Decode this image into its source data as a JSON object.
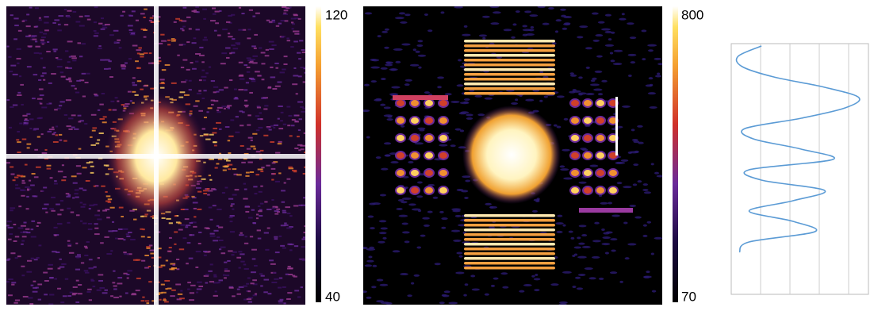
{
  "colorbars": [
    {
      "max": 120,
      "min": 40
    },
    {
      "max": 800,
      "min": 70
    }
  ],
  "chart_data": {
    "type": "line",
    "color": "#5b9bd5",
    "values": [
      22,
      5,
      8,
      31,
      68,
      93,
      83,
      51,
      10,
      16,
      51,
      74,
      13,
      22,
      68,
      45,
      13,
      45,
      61,
      13,
      6
    ],
    "xlim": [
      0,
      100
    ]
  }
}
